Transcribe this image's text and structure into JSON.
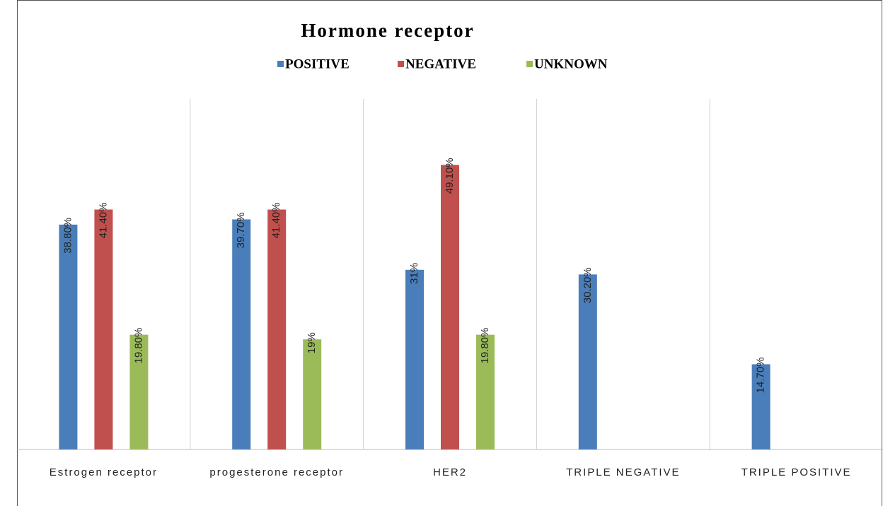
{
  "chart_data": {
    "type": "bar",
    "title": "Hormone receptor",
    "categories": [
      "Estrogen receptor",
      "progesterone receptor",
      "HER2",
      "TRIPLE NEGATIVE",
      "TRIPLE POSITIVE"
    ],
    "series": [
      {
        "name": "POSITIVE",
        "color": "#4a7ebb",
        "values": [
          38.8,
          39.7,
          31,
          30.2,
          14.7
        ],
        "value_labels": [
          "38.80%",
          "39.70%",
          "31%",
          "30.20%",
          "14.70%"
        ]
      },
      {
        "name": "NEGATIVE",
        "color": "#c0504d",
        "values": [
          41.4,
          41.4,
          49.1,
          null,
          null
        ],
        "value_labels": [
          "41.40%",
          "41.40%",
          "49.10%",
          null,
          null
        ]
      },
      {
        "name": "UNKNOWN",
        "color": "#9bbb59",
        "values": [
          19.8,
          19,
          19.8,
          null,
          null
        ],
        "value_labels": [
          "19.80%",
          "19%",
          "19.80%",
          null,
          null
        ]
      }
    ],
    "legend": "top"
  }
}
